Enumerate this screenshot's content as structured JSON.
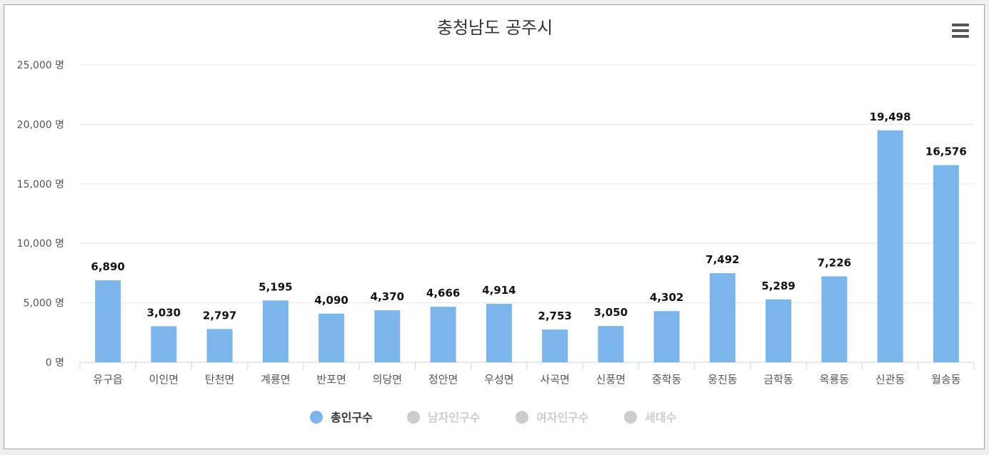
{
  "chart_data": {
    "type": "bar",
    "title": "충청남도 공주시",
    "categories": [
      "유구읍",
      "이인면",
      "탄천면",
      "계룡면",
      "반포면",
      "의당면",
      "정안면",
      "우성면",
      "사곡면",
      "신풍면",
      "중학동",
      "웅진동",
      "금학동",
      "옥룡동",
      "신관동",
      "월송동"
    ],
    "series": [
      {
        "name": "총인구수",
        "values": [
          6890,
          3030,
          2797,
          5195,
          4090,
          4370,
          4666,
          4914,
          2753,
          3050,
          4302,
          7492,
          5289,
          7226,
          19498,
          16576
        ],
        "color": "#7cb5ec",
        "visible": true
      },
      {
        "name": "남자인구수",
        "visible": false,
        "color": "#cccccc"
      },
      {
        "name": "여자인구수",
        "visible": false,
        "color": "#cccccc"
      },
      {
        "name": "세대수",
        "visible": false,
        "color": "#cccccc"
      }
    ],
    "data_labels": [
      "6,890",
      "3,030",
      "2,797",
      "5,195",
      "4,090",
      "4,370",
      "4,666",
      "4,914",
      "2,753",
      "3,050",
      "4,302",
      "7,492",
      "5,289",
      "7,226",
      "19,498",
      "16,576"
    ],
    "yticks": [
      "0 명",
      "5,000 명",
      "10,000 명",
      "15,000 명",
      "20,000 명",
      "25,000 명"
    ],
    "ylim": [
      0,
      25000
    ],
    "xlabel": "",
    "ylabel": "",
    "grid": true,
    "legend": "bottom-center"
  },
  "menu": {
    "icon": "hamburger-menu-icon"
  }
}
